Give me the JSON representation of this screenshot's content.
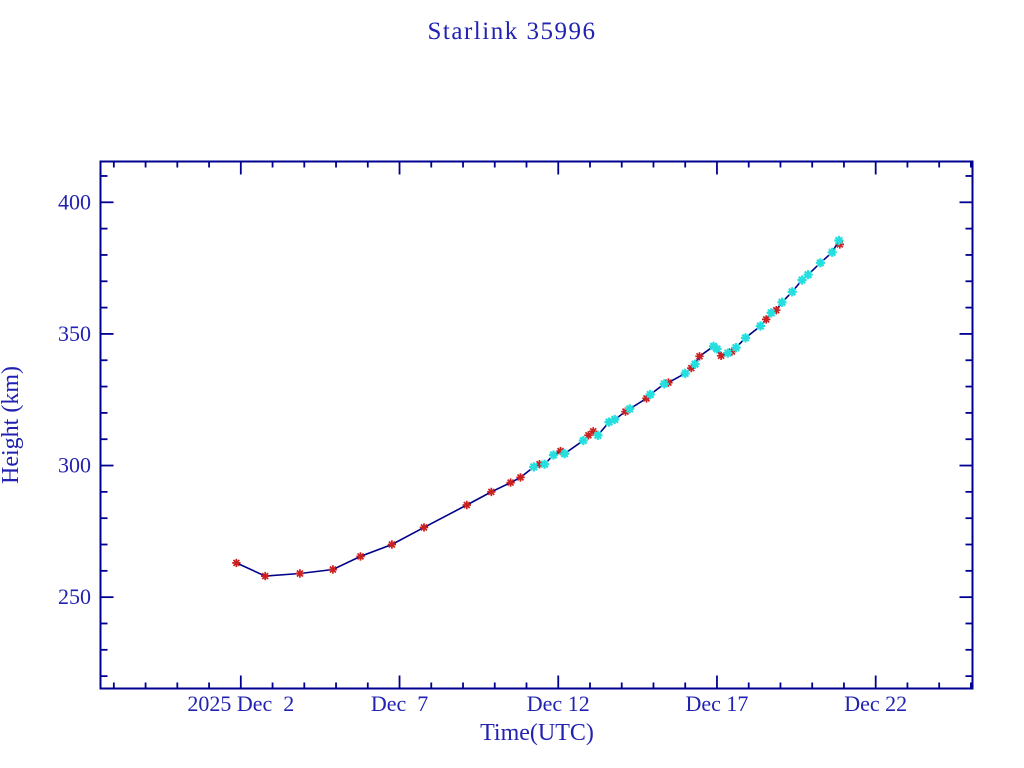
{
  "page": {
    "background_color": "#ffffff"
  },
  "chart_data": {
    "type": "line",
    "title": "Starlink 35996",
    "xlabel": "Time(UTC)",
    "ylabel": "Height (km)",
    "grid": false,
    "legend": "none",
    "colors": {
      "frame": "#000090",
      "text": "#2222b2",
      "line": "#00008b",
      "red_marker": "#cb2020",
      "cyan_marker": "#25dede"
    },
    "x_axis": {
      "unit": "day of December 2025 (decimal, UTC)",
      "lim": [
        -2.42,
        25.05
      ],
      "minor_tick_step": 1,
      "major_ticks": [
        {
          "day": 2,
          "label": "2025 Dec  2"
        },
        {
          "day": 7,
          "label": "Dec  7"
        },
        {
          "day": 12,
          "label": "Dec 12"
        },
        {
          "day": 17,
          "label": "Dec 17"
        },
        {
          "day": 22,
          "label": "Dec 22"
        }
      ]
    },
    "y_axis": {
      "unit": "km",
      "lim": [
        215.3,
        415.5
      ],
      "minor_tick_step": 10,
      "major_ticks": [
        {
          "km": 250,
          "label": "250"
        },
        {
          "km": 300,
          "label": "300"
        },
        {
          "km": 350,
          "label": "350"
        },
        {
          "km": 400,
          "label": "400"
        }
      ]
    },
    "series": [
      {
        "name": "red-asterisk-points",
        "marker": "asterisk",
        "color_key": "red_marker",
        "points": [
          [
            1.86,
            263
          ],
          [
            2.77,
            258
          ],
          [
            3.86,
            259
          ],
          [
            4.9,
            260.5
          ],
          [
            5.77,
            265.5
          ],
          [
            6.76,
            270
          ],
          [
            7.77,
            276.5
          ],
          [
            9.12,
            285
          ],
          [
            9.89,
            290
          ],
          [
            10.5,
            293.5
          ],
          [
            10.81,
            295.5
          ],
          [
            11.41,
            300.5
          ],
          [
            12.07,
            305.5
          ],
          [
            12.95,
            311.5
          ],
          [
            13.1,
            313
          ],
          [
            14.12,
            320.5
          ],
          [
            14.78,
            325.5
          ],
          [
            15.47,
            331.5
          ],
          [
            16.19,
            337
          ],
          [
            16.45,
            341.5
          ],
          [
            17.13,
            341.7
          ],
          [
            17.47,
            343.3
          ],
          [
            18.55,
            355.5
          ],
          [
            18.87,
            359
          ],
          [
            20.87,
            384
          ]
        ]
      },
      {
        "name": "cyan-asterisk-points",
        "marker": "asterisk",
        "color_key": "cyan_marker",
        "points": [
          [
            11.23,
            299.5
          ],
          [
            11.57,
            300.5
          ],
          [
            11.85,
            304
          ],
          [
            12.2,
            304.5
          ],
          [
            12.79,
            309.5
          ],
          [
            13.25,
            311.5
          ],
          [
            13.6,
            316.5
          ],
          [
            13.78,
            317.5
          ],
          [
            14.25,
            321.5
          ],
          [
            14.9,
            327
          ],
          [
            15.34,
            331
          ],
          [
            16.0,
            335
          ],
          [
            16.31,
            338.5
          ],
          [
            16.89,
            345.3
          ],
          [
            17.0,
            344.3
          ],
          [
            17.34,
            342.7
          ],
          [
            17.6,
            344.8
          ],
          [
            17.9,
            348.5
          ],
          [
            18.37,
            353
          ],
          [
            18.71,
            358
          ],
          [
            19.05,
            362
          ],
          [
            19.37,
            366
          ],
          [
            19.68,
            370.5
          ],
          [
            19.87,
            372.5
          ],
          [
            20.26,
            377
          ],
          [
            20.63,
            381
          ],
          [
            20.84,
            385.5
          ]
        ]
      }
    ],
    "line_connects": "all points of both series in time order"
  }
}
